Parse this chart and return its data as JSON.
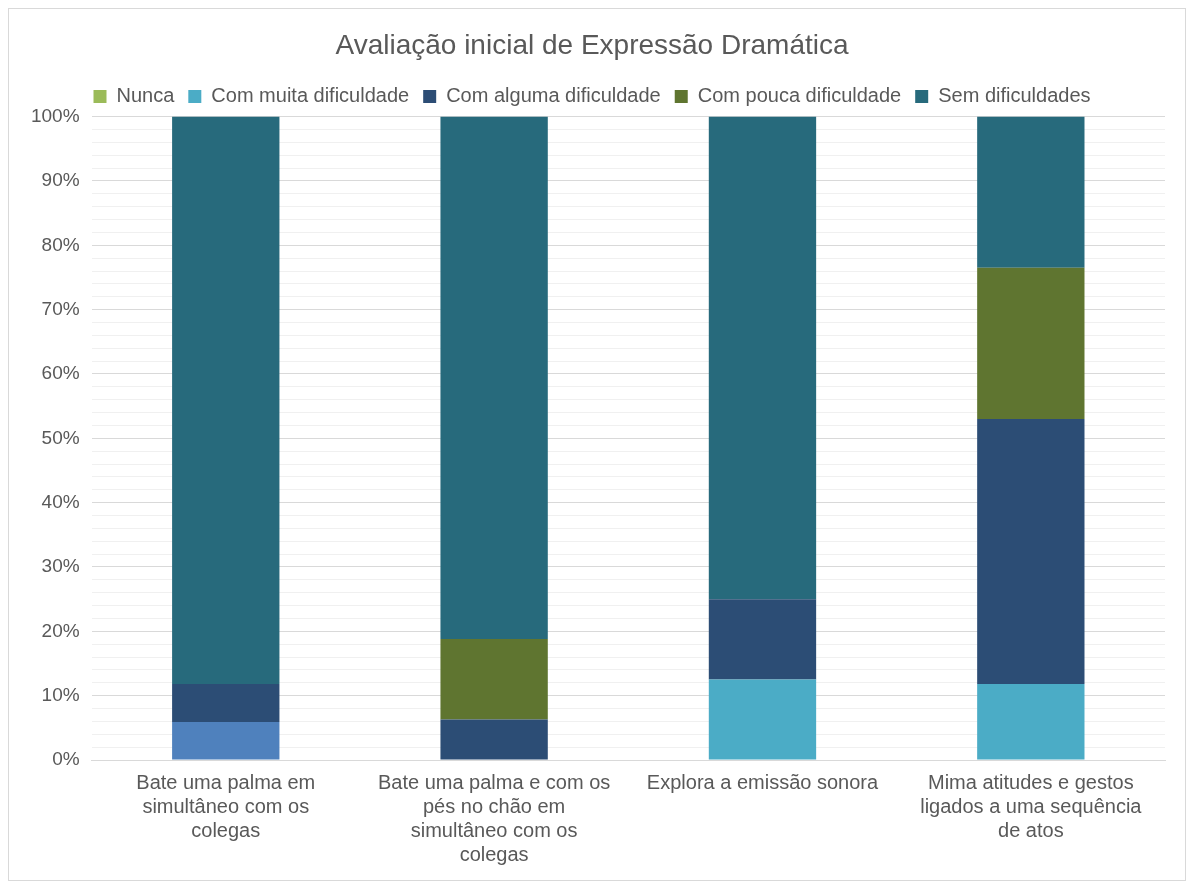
{
  "chart_data": {
    "type": "bar",
    "title": "Avaliação inicial de Expressão Dramática",
    "stacked": true,
    "legend": "top",
    "grid": "y",
    "categories": [
      "Bate uma palma em simultâneo com os colegas",
      "Bate uma palma e com os pés no chão em simultâneo com os colegas",
      "Explora a emissão sonora",
      "Mima atitudes e gestos ligados a uma sequência de atos"
    ],
    "series": [
      {
        "name": "Nunca",
        "color": "#9bbb59",
        "values": [
          0,
          0,
          0,
          0
        ]
      },
      {
        "name": "Com muita dificuldade",
        "color": "#4bacc6",
        "colors": [
          "#4f81bd",
          "#4bacc6",
          "#4bacc6",
          "#4bacc6"
        ],
        "values": [
          5.9,
          0,
          12.5,
          11.8
        ]
      },
      {
        "name": "Com alguma dificuldade",
        "color": "#2c4d75",
        "values": [
          5.9,
          6.3,
          12.5,
          41.2
        ]
      },
      {
        "name": "Com pouca dificuldade",
        "color": "#5f7530",
        "values": [
          0,
          12.5,
          0,
          23.5
        ]
      },
      {
        "name": "Sem dificuldades",
        "color": "#276a7c",
        "values": [
          88.2,
          81.2,
          75,
          23.5
        ]
      }
    ],
    "ylim": [
      0,
      100
    ],
    "yticks": [
      {
        "value": 0,
        "label": "0%"
      },
      {
        "value": 2,
        "label": null
      },
      {
        "value": 4,
        "label": null
      },
      {
        "value": 6,
        "label": null
      },
      {
        "value": 8,
        "label": null
      },
      {
        "value": 10,
        "label": "10%"
      },
      {
        "value": 12,
        "label": null
      },
      {
        "value": 14,
        "label": null
      },
      {
        "value": 16,
        "label": null
      },
      {
        "value": 18,
        "label": null
      },
      {
        "value": 20,
        "label": "20%"
      },
      {
        "value": 22,
        "label": null
      },
      {
        "value": 24,
        "label": null
      },
      {
        "value": 26,
        "label": null
      },
      {
        "value": 28,
        "label": null
      },
      {
        "value": 30,
        "label": "30%"
      },
      {
        "value": 32,
        "label": null
      },
      {
        "value": 34,
        "label": null
      },
      {
        "value": 36,
        "label": null
      },
      {
        "value": 38,
        "label": null
      },
      {
        "value": 40,
        "label": "40%"
      },
      {
        "value": 42,
        "label": null
      },
      {
        "value": 44,
        "label": null
      },
      {
        "value": 46,
        "label": null
      },
      {
        "value": 48,
        "label": null
      },
      {
        "value": 50,
        "label": "50%"
      },
      {
        "value": 52,
        "label": null
      },
      {
        "value": 54,
        "label": null
      },
      {
        "value": 56,
        "label": null
      },
      {
        "value": 58,
        "label": null
      },
      {
        "value": 60,
        "label": "60%"
      },
      {
        "value": 62,
        "label": null
      },
      {
        "value": 64,
        "label": null
      },
      {
        "value": 66,
        "label": null
      },
      {
        "value": 68,
        "label": null
      },
      {
        "value": 70,
        "label": "70%"
      },
      {
        "value": 72,
        "label": null
      },
      {
        "value": 74,
        "label": null
      },
      {
        "value": 76,
        "label": null
      },
      {
        "value": 78,
        "label": null
      },
      {
        "value": 80,
        "label": "80%"
      },
      {
        "value": 82,
        "label": null
      },
      {
        "value": 84,
        "label": null
      },
      {
        "value": 86,
        "label": null
      },
      {
        "value": 88,
        "label": null
      },
      {
        "value": 90,
        "label": "90%"
      },
      {
        "value": 92,
        "label": null
      },
      {
        "value": 94,
        "label": null
      },
      {
        "value": 96,
        "label": null
      },
      {
        "value": 98,
        "label": null
      },
      {
        "value": 100,
        "label": "100%"
      }
    ]
  }
}
